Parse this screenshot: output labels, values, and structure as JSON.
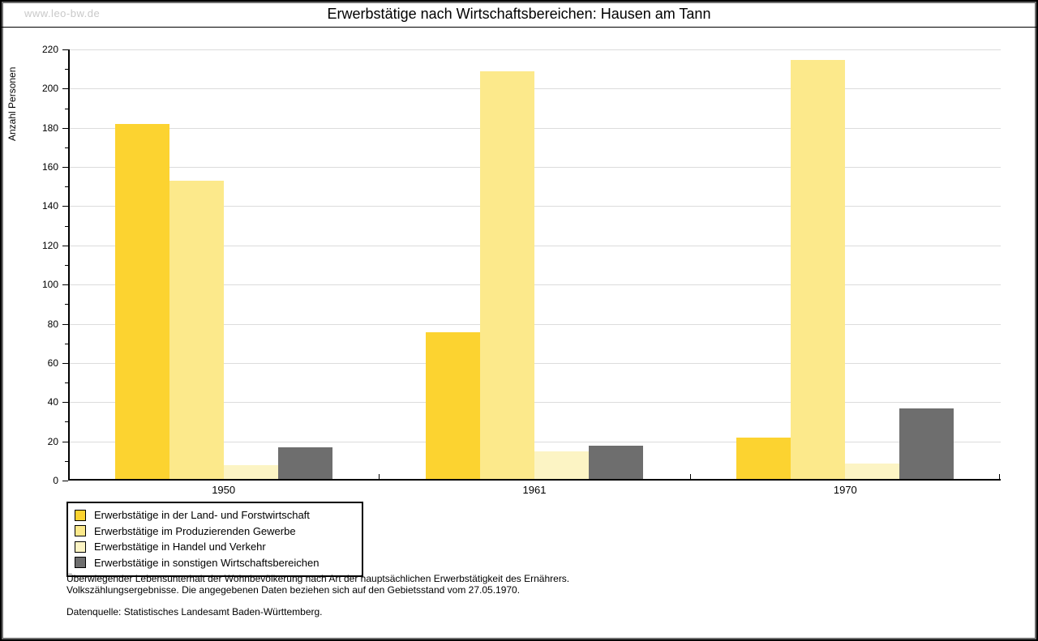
{
  "page": {
    "watermark": "www.leo-bw.de",
    "title": "Erwerbstätige nach Wirtschaftsbereichen: Hausen am Tann"
  },
  "chart_data": {
    "type": "bar",
    "title": "Erwerbstätige nach Wirtschaftsbereichen: Hausen am Tann",
    "xlabel": "",
    "ylabel": "Anzahl Personen",
    "ylim": [
      0,
      220
    ],
    "ytick_step": 20,
    "ytick_minor_step": 10,
    "grid": true,
    "grid_color": "#dcdcdc",
    "axis_color": "#000000",
    "legend_position": "bottom-left",
    "categories": [
      "1950",
      "1961",
      "1970"
    ],
    "series": [
      {
        "name": "Erwerbstätige in der Land- und Forstwirtschaft",
        "color": "#fcd330",
        "values": [
          181,
          75,
          21
        ]
      },
      {
        "name": "Erwerbstätige im Produzierenden Gewerbe",
        "color": "#fce98b",
        "values": [
          152,
          208,
          214
        ]
      },
      {
        "name": "Erwerbstätige in Handel und Verkehr",
        "color": "#fcf4c4",
        "values": [
          7,
          14,
          8
        ]
      },
      {
        "name": "Erwerbstätige in sonstigen Wirtschaftsbereichen",
        "color": "#6e6e6e",
        "values": [
          16,
          17,
          36
        ]
      }
    ]
  },
  "footer": {
    "line1": "Überwiegender Lebensunterhalt der Wohnbevölkerung nach Art der hauptsächlichen Erwerbstätigkeit des Ernährers.",
    "line2": "Volkszählungsergebnisse. Die angegebenen Daten beziehen sich auf den Gebietsstand vom 27.05.1970.",
    "source": "Datenquelle: Statistisches Landesamt Baden-Württemberg."
  }
}
